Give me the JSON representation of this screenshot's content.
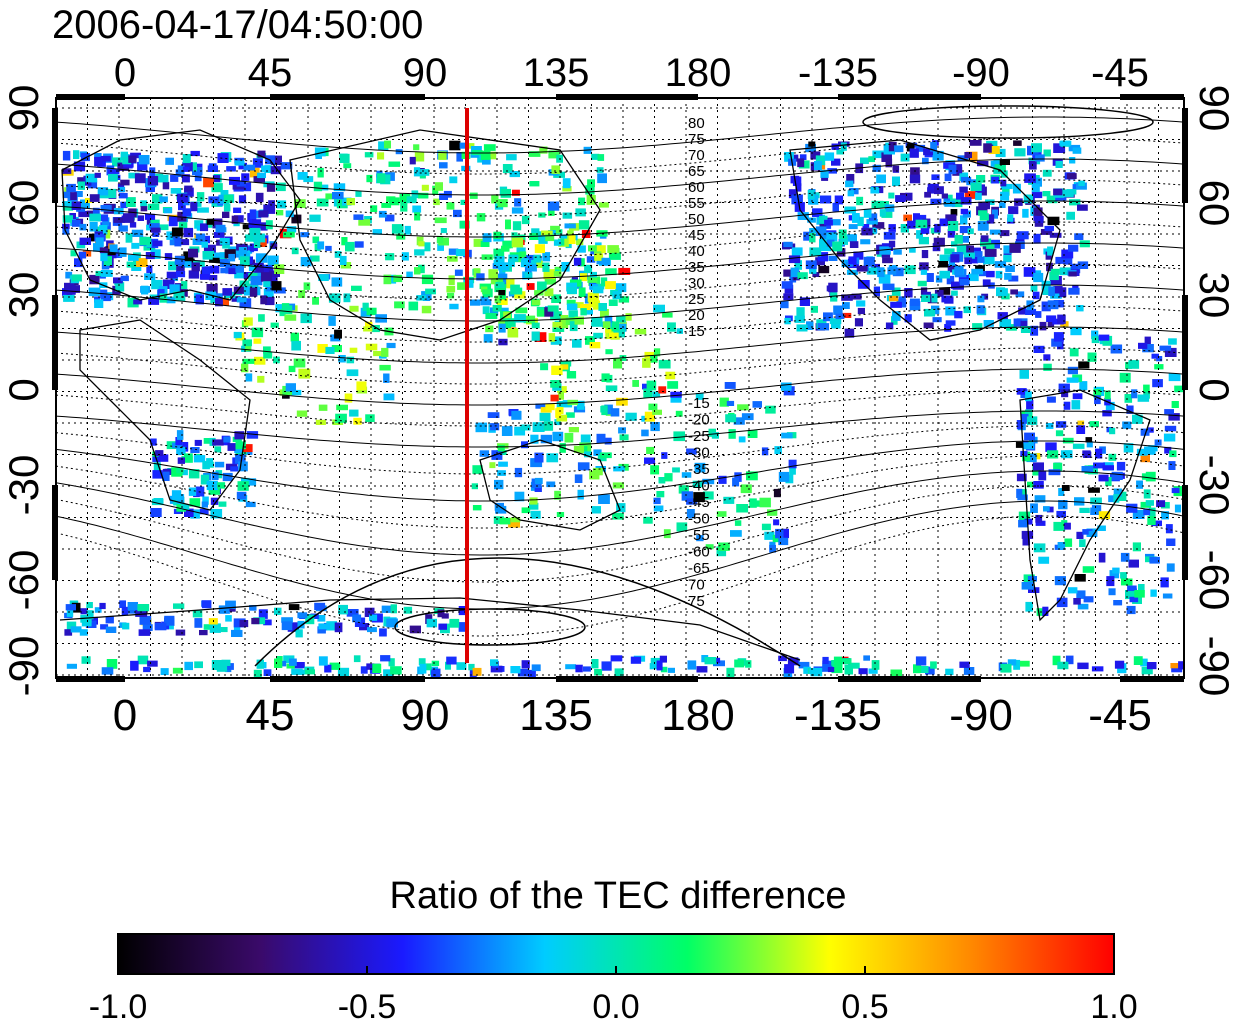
{
  "title": "2006-04-17/04:50:00",
  "map": {
    "lon_labels": [
      "0",
      "45",
      "90",
      "135",
      "180",
      "-135",
      "-90",
      "-45"
    ],
    "lat_labels_left": [
      "90",
      "60",
      "30",
      "0",
      "-30",
      "-60",
      "-90"
    ],
    "lat_labels_right": [
      "90",
      "60",
      "30",
      "0",
      "-30",
      "-60",
      "-90"
    ],
    "contour_labels_north": [
      "80",
      "75",
      "70",
      "65",
      "60",
      "55",
      "50",
      "45",
      "40",
      "35",
      "30",
      "25",
      "20",
      "15"
    ],
    "contour_labels_south": [
      "-15",
      "-20",
      "-25",
      "-30",
      "-35",
      "-40",
      "-45",
      "-50",
      "-55",
      "-60",
      "-65",
      "70",
      "75"
    ],
    "marker_line_color": "#dd0000"
  },
  "colorbar": {
    "title": "Ratio of the TEC difference",
    "tick_labels": [
      "-1.0",
      "-0.5",
      "0.0",
      "0.5",
      "1.0"
    ],
    "range": [
      -1.0,
      1.0
    ],
    "stops": [
      "#000000",
      "#3a0a6a",
      "#1a1aff",
      "#00ccff",
      "#00ff66",
      "#ffff00",
      "#ff8800",
      "#ff0000"
    ]
  }
}
